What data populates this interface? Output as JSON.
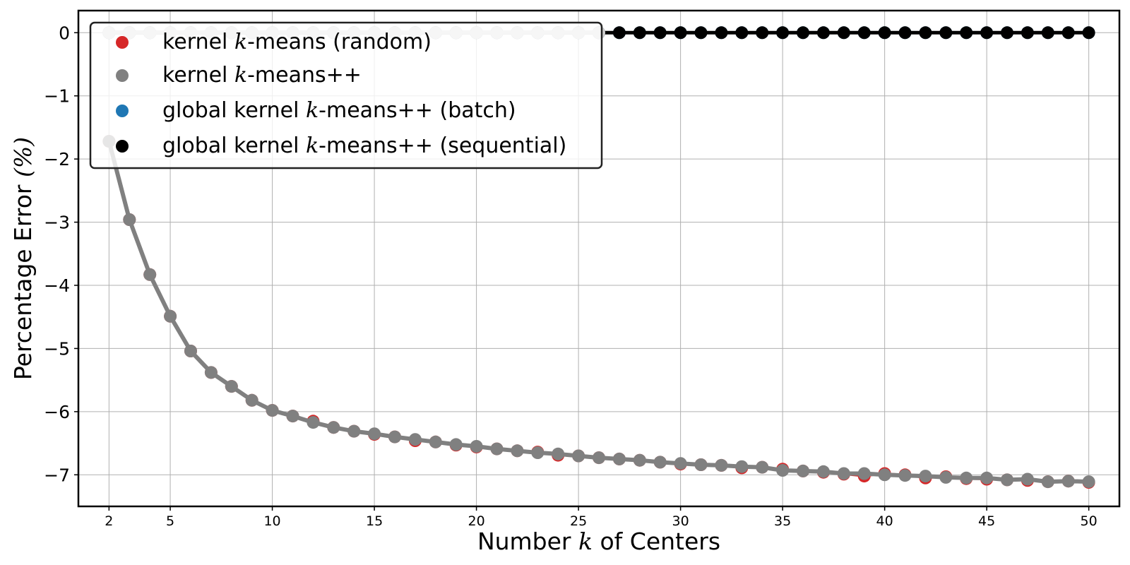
{
  "chart_data": {
    "type": "line",
    "xlabel_parts": [
      "Number ",
      "k",
      " of Centers"
    ],
    "ylabel_parts": [
      "Percentage Error ",
      "(%)"
    ],
    "xlim": [
      0.5,
      51.5
    ],
    "ylim": [
      -7.5,
      0.35
    ],
    "x_ticks": [
      2,
      5,
      10,
      15,
      20,
      25,
      30,
      35,
      40,
      45,
      50
    ],
    "y_ticks": [
      0,
      -1,
      -2,
      -3,
      -4,
      -5,
      -6,
      -7
    ],
    "y_tick_labels": [
      "0",
      "−1",
      "−2",
      "−3",
      "−4",
      "−5",
      "−6",
      "−7"
    ],
    "grid": true,
    "legend_position": "upper-left",
    "x": [
      2,
      3,
      4,
      5,
      6,
      7,
      8,
      9,
      10,
      11,
      12,
      13,
      14,
      15,
      16,
      17,
      18,
      19,
      20,
      21,
      22,
      23,
      24,
      25,
      26,
      27,
      28,
      29,
      30,
      31,
      32,
      33,
      34,
      35,
      36,
      37,
      38,
      39,
      40,
      41,
      42,
      43,
      44,
      45,
      46,
      47,
      48,
      49,
      50
    ],
    "series": [
      {
        "name_parts": [
          "kernel ",
          "k",
          "-means (random)"
        ],
        "color": "#d62728",
        "values": [
          -1.72,
          -2.96,
          -3.83,
          -4.49,
          -5.04,
          -5.38,
          -5.6,
          -5.82,
          -5.98,
          -6.07,
          -6.15,
          -6.25,
          -6.31,
          -6.36,
          -6.4,
          -6.46,
          -6.48,
          -6.53,
          -6.56,
          -6.59,
          -6.62,
          -6.64,
          -6.69,
          -6.7,
          -6.73,
          -6.75,
          -6.77,
          -6.8,
          -6.83,
          -6.84,
          -6.85,
          -6.89,
          -6.88,
          -6.91,
          -6.94,
          -6.96,
          -6.99,
          -7.02,
          -6.98,
          -7.0,
          -7.05,
          -7.03,
          -7.06,
          -7.07,
          -7.08,
          -7.09,
          -7.11,
          -7.1,
          -7.12
        ]
      },
      {
        "name_parts": [
          "kernel ",
          "k",
          "-means++"
        ],
        "color": "#808080",
        "values": [
          -1.72,
          -2.96,
          -3.83,
          -4.49,
          -5.04,
          -5.38,
          -5.6,
          -5.82,
          -5.98,
          -6.07,
          -6.17,
          -6.25,
          -6.31,
          -6.35,
          -6.4,
          -6.44,
          -6.48,
          -6.52,
          -6.55,
          -6.59,
          -6.62,
          -6.65,
          -6.67,
          -6.7,
          -6.73,
          -6.75,
          -6.77,
          -6.8,
          -6.82,
          -6.84,
          -6.85,
          -6.87,
          -6.88,
          -6.93,
          -6.94,
          -6.95,
          -6.98,
          -6.98,
          -7.0,
          -7.01,
          -7.02,
          -7.04,
          -7.05,
          -7.05,
          -7.08,
          -7.07,
          -7.11,
          -7.1,
          -7.11
        ]
      },
      {
        "name_parts": [
          "global kernel ",
          "k",
          "-means++ (batch)"
        ],
        "color": "#1f77b4",
        "values": [
          0,
          0,
          0,
          0,
          0,
          0,
          0,
          0,
          0,
          0,
          0,
          0,
          0,
          0,
          0,
          0,
          0,
          0,
          0,
          0,
          0,
          0,
          0,
          0,
          0,
          0,
          0,
          0,
          0,
          0,
          0,
          0,
          0,
          0,
          0,
          0,
          0,
          0,
          0,
          0,
          0,
          0,
          0,
          0,
          0,
          0,
          0,
          0,
          0
        ]
      },
      {
        "name_parts": [
          "global kernel ",
          "k",
          "-means++ (sequential)"
        ],
        "color": "#000000",
        "values": [
          0,
          0,
          0,
          0,
          0,
          0,
          0,
          0,
          0,
          0,
          0,
          0,
          0,
          0,
          0,
          0,
          0,
          0,
          0,
          0,
          0,
          0,
          0,
          0,
          0,
          0,
          0,
          0,
          0,
          0,
          0,
          0,
          0,
          0,
          0,
          0,
          0,
          0,
          0,
          0,
          0,
          0,
          0,
          0,
          0,
          0,
          0,
          0,
          0
        ]
      }
    ]
  }
}
